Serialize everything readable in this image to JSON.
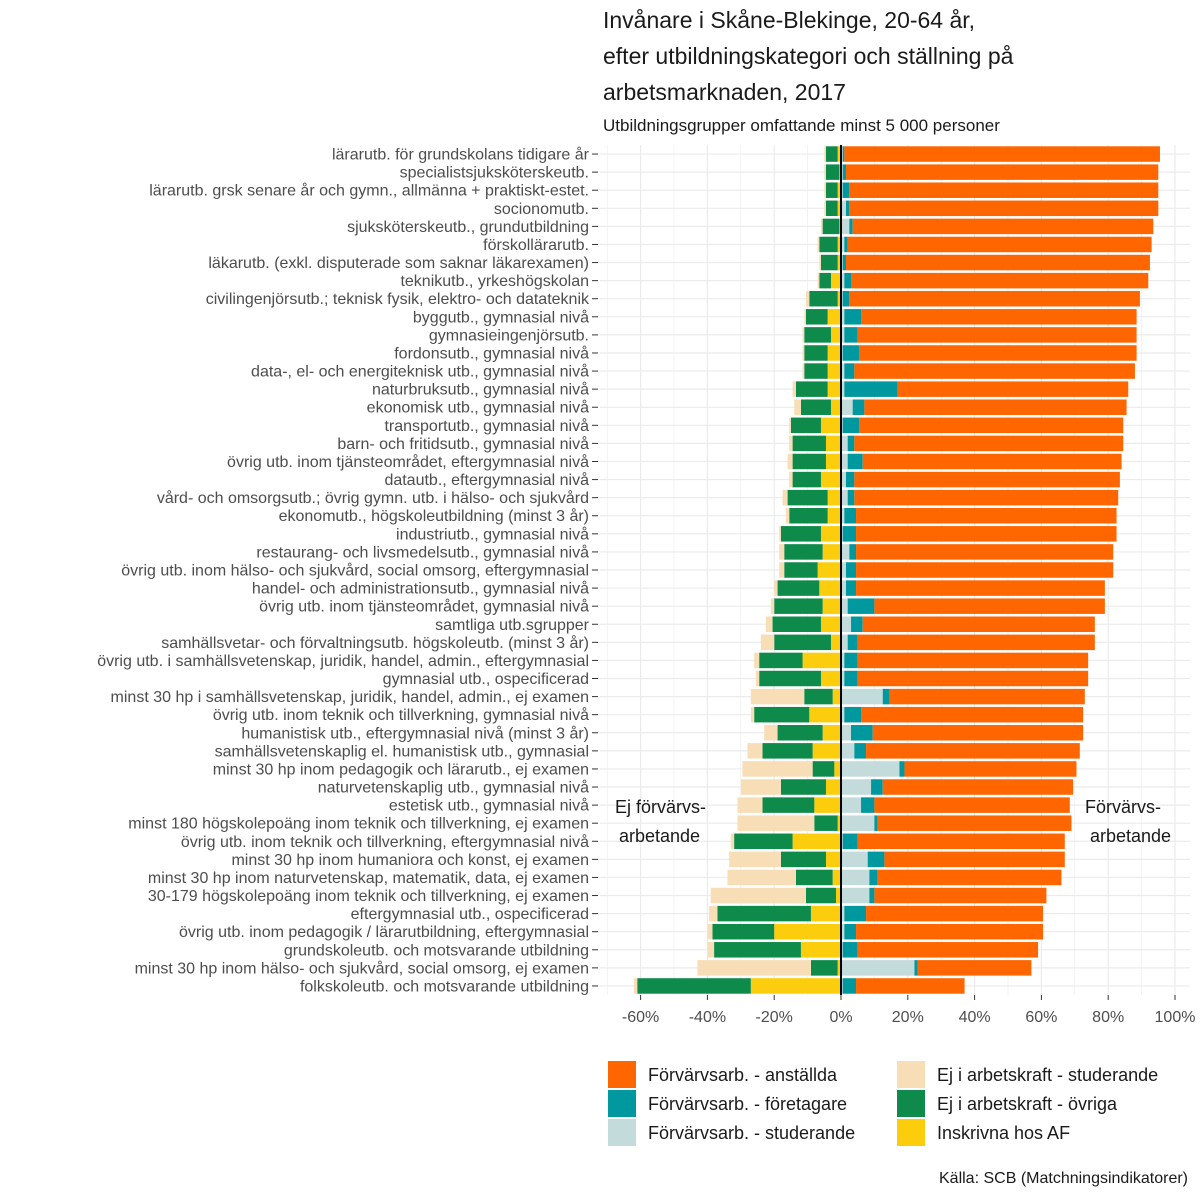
{
  "chart_data": {
    "type": "bar",
    "orientation": "horizontal-diverging",
    "title_lines": [
      "Invånare i Skåne-Blekinge, 20-64 år,",
      "efter utbildningskategori och ställning på",
      "arbetsmarknaden, 2017"
    ],
    "subtitle": "Utbildningsgrupper omfattande minst 5 000 personer",
    "source": "Källa: SCB (Matchningsindikatorer)",
    "annotation_left": [
      "Ej förvärvs-",
      "arbetande"
    ],
    "annotation_right": [
      "Förvärvs-",
      "arbetande"
    ],
    "xlim": [
      -70,
      100
    ],
    "x_ticks": [
      -60,
      -40,
      -20,
      0,
      20,
      40,
      60,
      80,
      100
    ],
    "x_tick_labels": [
      "-60%",
      "-40%",
      "-20%",
      "0%",
      "20%",
      "40%",
      "60%",
      "80%",
      "100%"
    ],
    "grid": true,
    "legend_position": "bottom",
    "legend": [
      {
        "key": "anst",
        "label": "Förvärvsarb. - anställda",
        "color": "#FF6600"
      },
      {
        "key": "stud_ej",
        "label": "Ej i arbetskraft - studerande",
        "color": "#F8DEB6"
      },
      {
        "key": "fore",
        "label": "Förvärvsarb. - företagare",
        "color": "#00989F"
      },
      {
        "key": "ovr",
        "label": "Ej i arbetskraft - övriga",
        "color": "#0E8B4A"
      },
      {
        "key": "stud_fa",
        "label": "Förvärvsarb. - studerande",
        "color": "#C4DBDB"
      },
      {
        "key": "af",
        "label": "Inskrivna hos AF",
        "color": "#FBCD0D"
      }
    ],
    "categories": [
      {
        "label": "lärarutb. för grundskolans tidigare år",
        "stud_fa": 0.5,
        "fore": 0.5,
        "anst": 94.5,
        "af": 1,
        "stud_ej": 0.5,
        "ovr": 3.5
      },
      {
        "label": "specialistsjuksköterskeutb.",
        "stud_fa": 0.5,
        "fore": 1,
        "anst": 93.5,
        "af": 0.5,
        "stud_ej": 0.5,
        "ovr": 4
      },
      {
        "label": "lärarutb. grsk senare år och gymn., allmänna + praktiskt-estet.",
        "stud_fa": 0.5,
        "fore": 2,
        "anst": 92.5,
        "af": 1,
        "stud_ej": 0.5,
        "ovr": 3.5
      },
      {
        "label": "socionomutb.",
        "stud_fa": 1.5,
        "fore": 1,
        "anst": 92.5,
        "af": 1,
        "stud_ej": 0.5,
        "ovr": 3.5
      },
      {
        "label": "sjuksköterskeutb., grundutbildning",
        "stud_fa": 2.5,
        "fore": 1,
        "anst": 90,
        "af": 0.5,
        "stud_ej": 0.5,
        "ovr": 5
      },
      {
        "label": "förskollärarutb.",
        "stud_fa": 1,
        "fore": 1,
        "anst": 91,
        "af": 1,
        "stud_ej": 0.5,
        "ovr": 5.5
      },
      {
        "label": "läkarutb. (exkl. disputerade som saknar läkarexamen)",
        "stud_fa": 0.5,
        "fore": 1,
        "anst": 91,
        "af": 1,
        "stud_ej": 0.5,
        "ovr": 5
      },
      {
        "label": "teknikutb., yrkeshögskolan",
        "stud_fa": 1,
        "fore": 2,
        "anst": 89,
        "af": 3,
        "stud_ej": 0.5,
        "ovr": 3.5
      },
      {
        "label": "civilingenjörsutb.; teknisk fysik, elektro- och datateknik",
        "stud_fa": 0.5,
        "fore": 2,
        "anst": 87,
        "af": 1,
        "stud_ej": 1,
        "ovr": 8.5
      },
      {
        "label": "byggutb., gymnasial nivå",
        "stud_fa": 1,
        "fore": 5,
        "anst": 82.5,
        "af": 4,
        "stud_ej": 0.5,
        "ovr": 6.5
      },
      {
        "label": "gymnasieingenjörsutb.",
        "stud_fa": 1,
        "fore": 4,
        "anst": 83.5,
        "af": 3,
        "stud_ej": 0.5,
        "ovr": 8
      },
      {
        "label": "fordonsutb., gymnasial nivå",
        "stud_fa": 0.5,
        "fore": 5,
        "anst": 83,
        "af": 4,
        "stud_ej": 0.5,
        "ovr": 7
      },
      {
        "label": "data-, el- och energiteknisk utb., gymnasial nivå",
        "stud_fa": 1,
        "fore": 3,
        "anst": 84,
        "af": 4,
        "stud_ej": 0.5,
        "ovr": 7
      },
      {
        "label": "naturbruksutb., gymnasial nivå",
        "stud_fa": 1,
        "fore": 16,
        "anst": 69,
        "af": 4,
        "stud_ej": 1,
        "ovr": 9.5
      },
      {
        "label": "ekonomisk utb., gymnasial nivå",
        "stud_fa": 3.5,
        "fore": 3.5,
        "anst": 78.5,
        "af": 3,
        "stud_ej": 2,
        "ovr": 9
      },
      {
        "label": "transportutb., gymnasial nivå",
        "stud_fa": 0.5,
        "fore": 5,
        "anst": 79,
        "af": 6,
        "stud_ej": 0.5,
        "ovr": 9
      },
      {
        "label": "barn- och fritidsutb., gymnasial nivå",
        "stud_fa": 2,
        "fore": 2,
        "anst": 80.5,
        "af": 4.5,
        "stud_ej": 1,
        "ovr": 10
      },
      {
        "label": "övrig utb. inom tjänsteområdet, eftergymnasial nivå",
        "stud_fa": 2,
        "fore": 4.5,
        "anst": 77.5,
        "af": 4.5,
        "stud_ej": 1.5,
        "ovr": 10
      },
      {
        "label": "datautb., eftergymnasial nivå",
        "stud_fa": 1.5,
        "fore": 2.5,
        "anst": 79.5,
        "af": 6,
        "stud_ej": 1,
        "ovr": 8.5
      },
      {
        "label": "vård- och omsorgsutb.; övrig gymn. utb. i hälso- och sjukvård",
        "stud_fa": 2,
        "fore": 2,
        "anst": 79,
        "af": 4,
        "stud_ej": 1.5,
        "ovr": 12
      },
      {
        "label": "ekonomutb., högskoleutbildning (minst 3 år)",
        "stud_fa": 1,
        "fore": 3.5,
        "anst": 78,
        "af": 4,
        "stud_ej": 1,
        "ovr": 11.5
      },
      {
        "label": "industriutb., gymnasial nivå",
        "stud_fa": 0.5,
        "fore": 4,
        "anst": 78,
        "af": 6,
        "stud_ej": 0.5,
        "ovr": 12
      },
      {
        "label": "restaurang- och livsmedelsutb., gymnasial nivå",
        "stud_fa": 2.5,
        "fore": 2,
        "anst": 77,
        "af": 5.5,
        "stud_ej": 1.5,
        "ovr": 11.5
      },
      {
        "label": "övrig utb. inom hälso- och sjukvård, social omsorg, eftergymnasial",
        "stud_fa": 1.5,
        "fore": 3,
        "anst": 77,
        "af": 7,
        "stud_ej": 1.5,
        "ovr": 10
      },
      {
        "label": "handel- och administrationsutb., gymnasial nivå",
        "stud_fa": 1.5,
        "fore": 3,
        "anst": 74.5,
        "af": 6.5,
        "stud_ej": 1,
        "ovr": 12.5
      },
      {
        "label": "övrig utb. inom tjänsteområdet, gymnasial nivå",
        "stud_fa": 2,
        "fore": 8,
        "anst": 69,
        "af": 5.5,
        "stud_ej": 1,
        "ovr": 14.5
      },
      {
        "label": "samtliga utb.sgrupper",
        "stud_fa": 3,
        "fore": 3.5,
        "anst": 69.5,
        "af": 6,
        "stud_ej": 2,
        "ovr": 14.5
      },
      {
        "label": "samhällsvetar- och förvaltningsutb. högskoleutb. (minst 3 år)",
        "stud_fa": 2,
        "fore": 3,
        "anst": 71,
        "af": 3,
        "stud_ej": 4,
        "ovr": 17
      },
      {
        "label": "övrig utb. i samhällsvetenskap, juridik, handel, admin., eftergymnasial",
        "stud_fa": 1,
        "fore": 4,
        "anst": 69,
        "af": 11.5,
        "stud_ej": 1.5,
        "ovr": 13
      },
      {
        "label": "gymnasial utb., ospecificerad",
        "stud_fa": 1,
        "fore": 4,
        "anst": 69,
        "af": 6,
        "stud_ej": 1,
        "ovr": 18.5
      },
      {
        "label": "minst 30 hp i samhällsvetenskap, juridik, handel, admin., ej examen",
        "stud_fa": 12.5,
        "fore": 2,
        "anst": 58.5,
        "af": 2.5,
        "stud_ej": 16,
        "ovr": 8.5
      },
      {
        "label": "övrig utb. inom teknik och tillverkning, gymnasial nivå",
        "stud_fa": 1,
        "fore": 5,
        "anst": 66.5,
        "af": 9.5,
        "stud_ej": 1,
        "ovr": 16.5
      },
      {
        "label": "humanistisk utb., eftergymnasial nivå (minst 3 år)",
        "stud_fa": 3,
        "fore": 6.5,
        "anst": 63,
        "af": 5.5,
        "stud_ej": 4,
        "ovr": 13.5
      },
      {
        "label": "samhällsvetenskaplig el. humanistisk utb., gymnasial",
        "stud_fa": 4,
        "fore": 3.5,
        "anst": 64,
        "af": 8.5,
        "stud_ej": 4.5,
        "ovr": 15
      },
      {
        "label": "minst 30 hp inom pedagogik och lärarutb., ej examen",
        "stud_fa": 17.5,
        "fore": 1.5,
        "anst": 51.5,
        "af": 2,
        "stud_ej": 21,
        "ovr": 6.5
      },
      {
        "label": "naturvetenskaplig utb., gymnasial nivå",
        "stud_fa": 9,
        "fore": 3.5,
        "anst": 57,
        "af": 4.5,
        "stud_ej": 12,
        "ovr": 13.5
      },
      {
        "label": "estetisk utb., gymnasial nivå",
        "stud_fa": 6,
        "fore": 4,
        "anst": 58.5,
        "af": 8,
        "stud_ej": 7.5,
        "ovr": 15.5
      },
      {
        "label": "minst 180 högskolepoäng inom teknik och tillverkning, ej examen",
        "stud_fa": 10,
        "fore": 1,
        "anst": 58,
        "af": 1,
        "stud_ej": 23,
        "ovr": 7
      },
      {
        "label": "övrig utb. inom teknik och tillverkning, eftergymnasial nivå",
        "stud_fa": 0.5,
        "fore": 4.5,
        "anst": 62,
        "af": 14.5,
        "stud_ej": 1,
        "ovr": 17.5
      },
      {
        "label": "minst 30 hp inom humaniora och konst, ej examen",
        "stud_fa": 8,
        "fore": 5,
        "anst": 54,
        "af": 4.5,
        "stud_ej": 15.5,
        "ovr": 13.5
      },
      {
        "label": "minst 30 hp inom naturvetenskap, matematik, data, ej examen",
        "stud_fa": 8.5,
        "fore": 2.5,
        "anst": 55,
        "af": 2.5,
        "stud_ej": 20.5,
        "ovr": 11
      },
      {
        "label": "30-179 högskolepoäng inom teknik och tillverkning, ej examen",
        "stud_fa": 8.5,
        "fore": 1.5,
        "anst": 51.5,
        "af": 1.5,
        "stud_ej": 28.5,
        "ovr": 9
      },
      {
        "label": "eftergymnasial utb., ospecificerad",
        "stud_fa": 1,
        "fore": 6.5,
        "anst": 53,
        "af": 9,
        "stud_ej": 2.5,
        "ovr": 28
      },
      {
        "label": "övrig utb. inom pedagogik / lärarutbildning, eftergymnasial",
        "stud_fa": 1,
        "fore": 3.5,
        "anst": 56,
        "af": 20,
        "stud_ej": 1.5,
        "ovr": 18.5
      },
      {
        "label": "grundskoleutb. och motsvarande utbildning",
        "stud_fa": 0.5,
        "fore": 4.5,
        "anst": 54,
        "af": 12,
        "stud_ej": 2,
        "ovr": 26
      },
      {
        "label": "minst 30 hp inom hälso- och sjukvård, social omsorg, ej examen",
        "stud_fa": 22,
        "fore": 1,
        "anst": 34,
        "af": 1,
        "stud_ej": 34,
        "ovr": 8
      },
      {
        "label": "folkskoleutb. och motsvarande utbildning",
        "stud_fa": 0.5,
        "fore": 4,
        "anst": 32.5,
        "af": 27,
        "stud_ej": 1,
        "ovr": 34
      }
    ]
  }
}
